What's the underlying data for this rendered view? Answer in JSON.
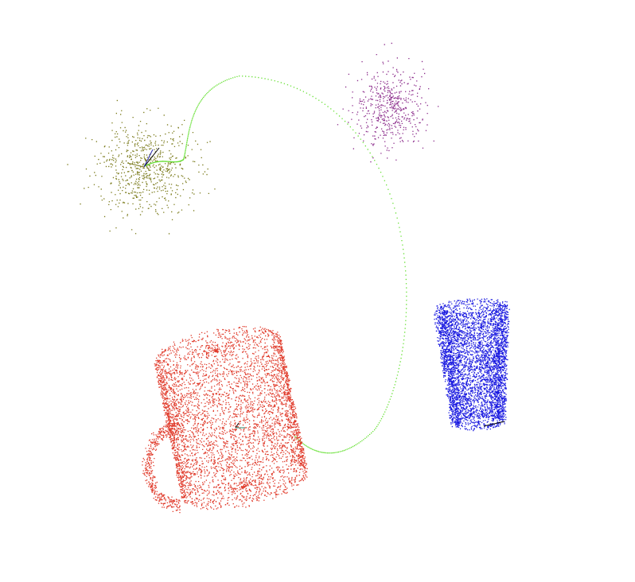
{
  "scene": {
    "background": "#ffffff",
    "objects": [
      {
        "name": "olive-gaussian-cloud",
        "color": "#7a7a1a",
        "shape": "gaussian-cluster",
        "approx_points": 650
      },
      {
        "name": "purple-gaussian-cloud",
        "color": "#8a2a8a",
        "shape": "gaussian-cluster",
        "approx_points": 500
      },
      {
        "name": "red-mug-point-cloud",
        "color": "#e03a2a",
        "shape": "mug",
        "approx_points": 5200
      },
      {
        "name": "blue-cup-point-cloud",
        "color": "#1a1ae0",
        "shape": "tapered-cup",
        "approx_points": 4600
      }
    ],
    "trajectory": {
      "name": "green-trajectory",
      "color": "#66e033",
      "style": "dotted"
    },
    "axes_markers": [
      {
        "name": "olive-cloud-axes",
        "colors": [
          "#000000",
          "#2a2ab0",
          "#7a7a1a"
        ]
      },
      {
        "name": "mug-axes",
        "colors": [
          "#2a8a6a",
          "#000000"
        ]
      },
      {
        "name": "cup-axes",
        "colors": [
          "#000000"
        ]
      }
    ]
  }
}
